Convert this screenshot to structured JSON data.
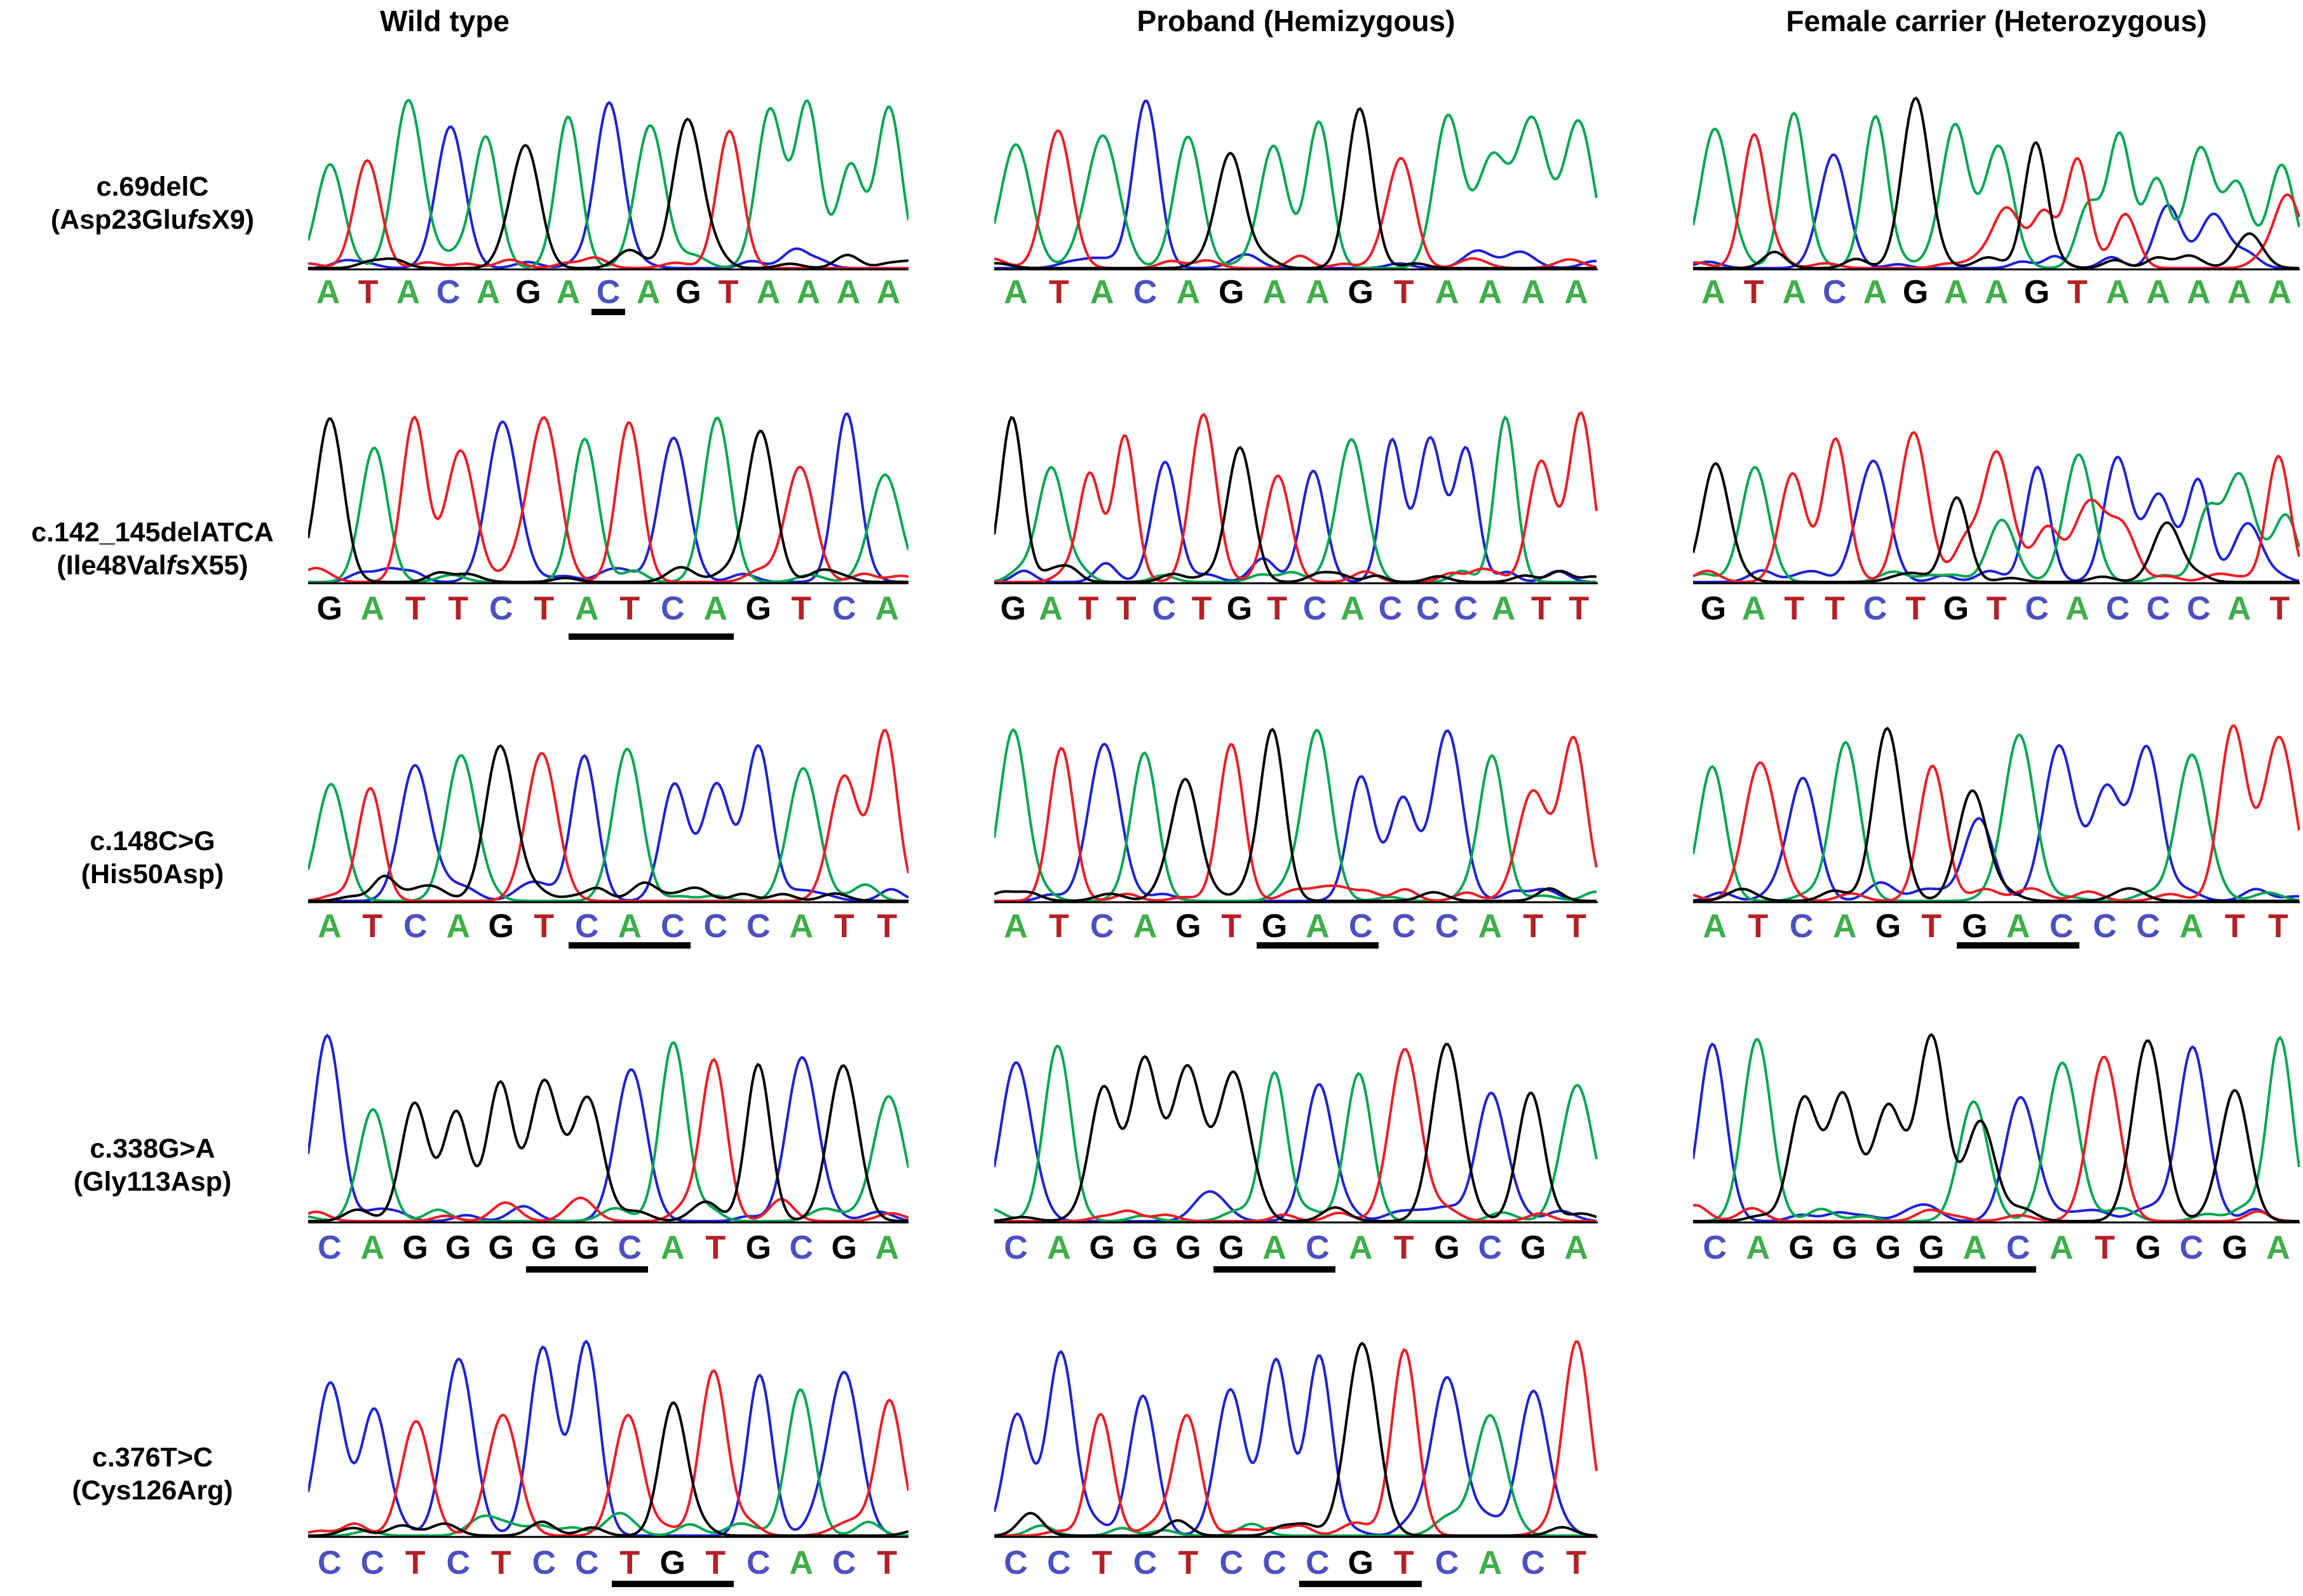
{
  "chart_data": {
    "type": "sanger-sequencing-chromatogram",
    "column_headers": [
      "Wild type",
      "Proband (Hemizygous)",
      "Female carrier (Heterozygous)"
    ],
    "row_labels": [
      {
        "l1": "c.69delC",
        "l2_pre": "(Asp23Glu",
        "l2_italic": "fs",
        "l2_post": "X9)"
      },
      {
        "l1": "c.142_145delATCA",
        "l2_pre": "(Ile48Val",
        "l2_italic": "fs",
        "l2_post": "X55)"
      },
      {
        "l1": "c.148C>G",
        "l2_pre": "(His50Asp)",
        "l2_italic": "",
        "l2_post": ""
      },
      {
        "l1": "c.338G>A",
        "l2_pre": "(Gly113Asp)",
        "l2_italic": "",
        "l2_post": ""
      },
      {
        "l1": "c.376T>C",
        "l2_pre": "(Cys126Arg)",
        "l2_italic": "",
        "l2_post": ""
      }
    ],
    "base_trace_colors": {
      "A": "#00a651",
      "C": "#1c22d6",
      "G": "#000000",
      "T": "#ee1c25"
    },
    "base_letter_colors": {
      "A": "#3fae49",
      "C": "#4b50c0",
      "G": "#000000",
      "T": "#b52025"
    },
    "underline_color": "#000000",
    "cells": [
      {
        "row": 0,
        "col": 0,
        "seq": "ATACAGACAGTAAAA",
        "ul": [
          [
            7,
            7
          ]
        ]
      },
      {
        "row": 0,
        "col": 1,
        "seq": "ATACAGAAGTAAAA",
        "ul": []
      },
      {
        "row": 0,
        "col": 2,
        "seq": "ATACAGAAGTAAAAA",
        "ul": [],
        "het_from": 7
      },
      {
        "row": 1,
        "col": 0,
        "seq": "GATTCTATCAGTCA",
        "ul": [
          [
            6,
            9
          ]
        ]
      },
      {
        "row": 1,
        "col": 1,
        "seq": "GATTCTGTCACCCATT",
        "ul": []
      },
      {
        "row": 1,
        "col": 2,
        "seq": "GATTCTGTCACCCAT",
        "ul": [],
        "het_from": 6
      },
      {
        "row": 2,
        "col": 0,
        "seq": "ATCAGTCACCCATT",
        "ul": [
          [
            6,
            8
          ]
        ]
      },
      {
        "row": 2,
        "col": 1,
        "seq": "ATCAGTGACCCATT",
        "ul": [
          [
            6,
            8
          ]
        ]
      },
      {
        "row": 2,
        "col": 2,
        "seq": "ATCAGTGACCCATT",
        "ul": [
          [
            6,
            8
          ]
        ],
        "het_sites": [
          {
            "index": 6,
            "alt": "C"
          }
        ]
      },
      {
        "row": 3,
        "col": 0,
        "seq": "CAGGGGGCATGCGA",
        "ul": [
          [
            5,
            7
          ]
        ]
      },
      {
        "row": 3,
        "col": 1,
        "seq": "CAGGGGACATGCGA",
        "ul": [
          [
            5,
            7
          ]
        ]
      },
      {
        "row": 3,
        "col": 2,
        "seq": "CAGGGGACATGCGA",
        "ul": [
          [
            5,
            7
          ]
        ],
        "het_sites": [
          {
            "index": 6,
            "alt": "G"
          }
        ]
      },
      {
        "row": 4,
        "col": 0,
        "seq": "CCTCTCCTGTCACT",
        "ul": [
          [
            7,
            9
          ]
        ]
      },
      {
        "row": 4,
        "col": 1,
        "seq": "CCTCTCCCGTCACT",
        "ul": [
          [
            7,
            9
          ]
        ]
      }
    ]
  }
}
